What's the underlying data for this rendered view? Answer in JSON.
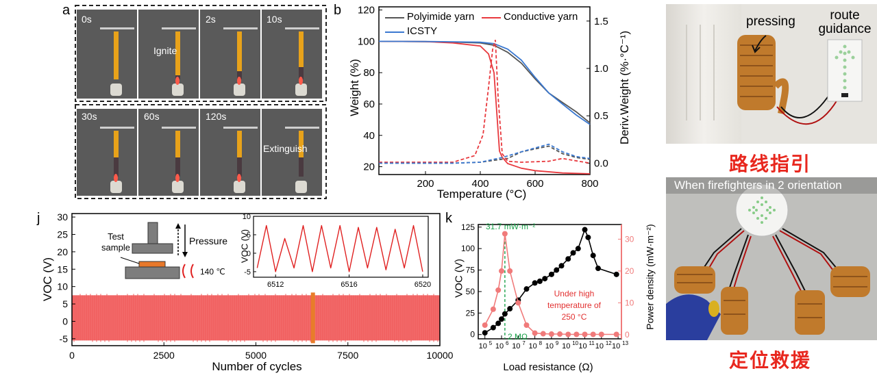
{
  "panels": {
    "a": {
      "label": "a",
      "top_row": [
        "0s",
        "2s",
        "10s"
      ],
      "ignite_text": "Ignite",
      "bottom_row": [
        "30s",
        "60s",
        "120s"
      ],
      "extinguish_text": "Extinguish"
    },
    "b": {
      "label": "b"
    },
    "j": {
      "label": "j"
    },
    "k": {
      "label": "k"
    },
    "photo_top": {
      "pressing": "pressing",
      "route_guidance": "route guidance",
      "caption": "路线指引"
    },
    "photo_bottom": {
      "banner": "When firefighters in 2 orientation",
      "caption": "定位救援"
    }
  },
  "chart_data": [
    {
      "id": "b",
      "type": "line",
      "xlabel": "Temperature (°C)",
      "ylabel": "Weight (%)",
      "y2label": "Deriv.Weight (%·°C⁻¹)",
      "xlim": [
        30,
        800
      ],
      "ylim": [
        15,
        122
      ],
      "y2lim": [
        -0.12,
        1.65
      ],
      "xticks": [
        200,
        400,
        600,
        800
      ],
      "yticks": [
        20,
        40,
        60,
        80,
        100,
        120
      ],
      "y2ticks": [
        "0.0",
        "0.5",
        "1.0",
        "1.5"
      ],
      "legend": [
        "Polyimide yarn",
        "Conductive yarn",
        "ICSTY"
      ],
      "legend_position": "top",
      "colors": {
        "Polyimide yarn": "#555555",
        "Conductive yarn": "#e8383d",
        "ICSTY": "#3a78d0"
      },
      "series": [
        {
          "name": "Polyimide yarn",
          "axis": "left",
          "x": [
            30,
            200,
            300,
            400,
            450,
            500,
            550,
            600,
            650,
            700,
            750,
            800
          ],
          "values": [
            100,
            99.8,
            99.5,
            99,
            97.5,
            93,
            86,
            76,
            67,
            61,
            55,
            48
          ]
        },
        {
          "name": "Conductive yarn",
          "axis": "left",
          "x": [
            30,
            200,
            300,
            400,
            430,
            450,
            460,
            470,
            480,
            500,
            550,
            600,
            700,
            800
          ],
          "values": [
            100,
            99.8,
            99,
            97,
            92,
            80,
            55,
            30,
            26,
            22,
            19,
            17.5,
            16,
            15.5
          ]
        },
        {
          "name": "ICSTY",
          "axis": "left",
          "x": [
            30,
            200,
            300,
            400,
            450,
            500,
            550,
            600,
            650,
            700,
            750,
            800
          ],
          "values": [
            100,
            99.9,
            99.7,
            99.4,
            98.5,
            95,
            88,
            77,
            67,
            60,
            53,
            47
          ]
        },
        {
          "name": "Polyimide yarn",
          "axis": "right",
          "style": "dashed",
          "x": [
            30,
            300,
            400,
            500,
            550,
            600,
            650,
            700,
            750,
            800
          ],
          "values": [
            0,
            0,
            0.01,
            0.05,
            0.12,
            0.15,
            0.18,
            0.1,
            0.06,
            0.04
          ]
        },
        {
          "name": "Conductive yarn",
          "axis": "right",
          "style": "dashed",
          "x": [
            30,
            300,
            380,
            410,
            430,
            445,
            455,
            465,
            480,
            500,
            550,
            650,
            700,
            800
          ],
          "values": [
            0.01,
            0.01,
            0.08,
            0.3,
            0.8,
            1.2,
            1.3,
            0.7,
            0.1,
            0.02,
            0.01,
            0.02,
            0.05,
            0
          ]
        },
        {
          "name": "ICSTY",
          "axis": "right",
          "style": "dashed",
          "x": [
            30,
            300,
            400,
            480,
            550,
            600,
            650,
            700,
            750,
            800
          ],
          "values": [
            0,
            0,
            0.01,
            0.06,
            0.12,
            0.16,
            0.2,
            0.12,
            0.07,
            0.05
          ]
        }
      ]
    },
    {
      "id": "j",
      "type": "area",
      "xlabel": "Number of cycles",
      "ylabel": "VOC (V)",
      "xlim": [
        0,
        10000
      ],
      "ylim": [
        -7,
        31
      ],
      "xticks": [
        0,
        2500,
        5000,
        7500,
        10000
      ],
      "yticks": [
        -5,
        0,
        5,
        10,
        15,
        20,
        25,
        30
      ],
      "band": {
        "min": -5.5,
        "max": 7.5,
        "color": "#f26b6b"
      },
      "highlight_x": 6550,
      "highlight_color": "#e87d2a",
      "annotations": {
        "test_sample": "Test sample",
        "pressure": "Pressure",
        "temp": "140 ℃"
      },
      "inset": {
        "type": "line",
        "ylabel": "VOC (V)",
        "xlim": [
          6510.8,
          6520.3
        ],
        "ylim": [
          -6.5,
          10
        ],
        "xticks": [
          6512,
          6516,
          6520
        ],
        "yticks": [
          -5,
          0,
          5,
          10
        ],
        "x": [
          6511.0,
          6511.5,
          6512.0,
          6512.5,
          6513.0,
          6513.5,
          6514.0,
          6514.5,
          6515.0,
          6515.5,
          6516.0,
          6516.5,
          6517.0,
          6517.5,
          6518.0,
          6518.5,
          6519.0,
          6519.5,
          6520.0
        ],
        "values": [
          -4,
          7.5,
          -5,
          4,
          -4,
          7.5,
          -5,
          7.5,
          -4,
          7.5,
          -5,
          7,
          -4,
          7,
          -4.5,
          6.5,
          -4,
          7.5,
          -5
        ]
      }
    },
    {
      "id": "k",
      "type": "scatter",
      "xlabel": "Load resistance (Ω)",
      "ylabel": "VOC (V)",
      "y2label": "Power density (mW·m⁻²)",
      "xscale": "log",
      "xlim": [
        4.6,
        13.2
      ],
      "ylim": [
        -5,
        128
      ],
      "y2lim": [
        -1.3,
        34.6
      ],
      "xtick_exponents": [
        5,
        6,
        7,
        8,
        9,
        10,
        11,
        12,
        13
      ],
      "yticks": [
        0,
        25,
        50,
        75,
        100,
        125
      ],
      "y2ticks": [
        0,
        10,
        20,
        30
      ],
      "peak_label": "31.7 mW·m⁻²",
      "resistance_label": "2 MΩ",
      "condition_text": "Under high temperature of 250 °C",
      "series": [
        {
          "name": "VOC",
          "axis": "left",
          "color": "#000000",
          "log_x": [
            5,
            5.5,
            5.8,
            6,
            6.2,
            6.5,
            7,
            7.5,
            8,
            8.3,
            8.6,
            9,
            9.3,
            9.6,
            10,
            10.3,
            10.6,
            11,
            11.2,
            11.5,
            11.8,
            12.9
          ],
          "values": [
            2,
            8,
            13,
            18,
            24,
            30,
            40,
            53,
            60,
            62,
            65,
            70,
            75,
            80,
            88,
            95,
            100,
            122,
            113,
            92,
            77,
            70
          ]
        },
        {
          "name": "Power density",
          "axis": "right",
          "color": "#f07a7a",
          "log_x": [
            5,
            5.5,
            5.8,
            6,
            6.2,
            6.5,
            7,
            7.5,
            8,
            8.5,
            9,
            9.5,
            10,
            10.5,
            11,
            11.5,
            12,
            12.9
          ],
          "values": [
            3,
            8,
            14,
            20,
            31.7,
            20,
            10,
            3,
            0.5,
            0.3,
            0.2,
            0.2,
            0.1,
            0.1,
            0.1,
            0.1,
            0.1,
            0.1
          ]
        }
      ]
    }
  ]
}
